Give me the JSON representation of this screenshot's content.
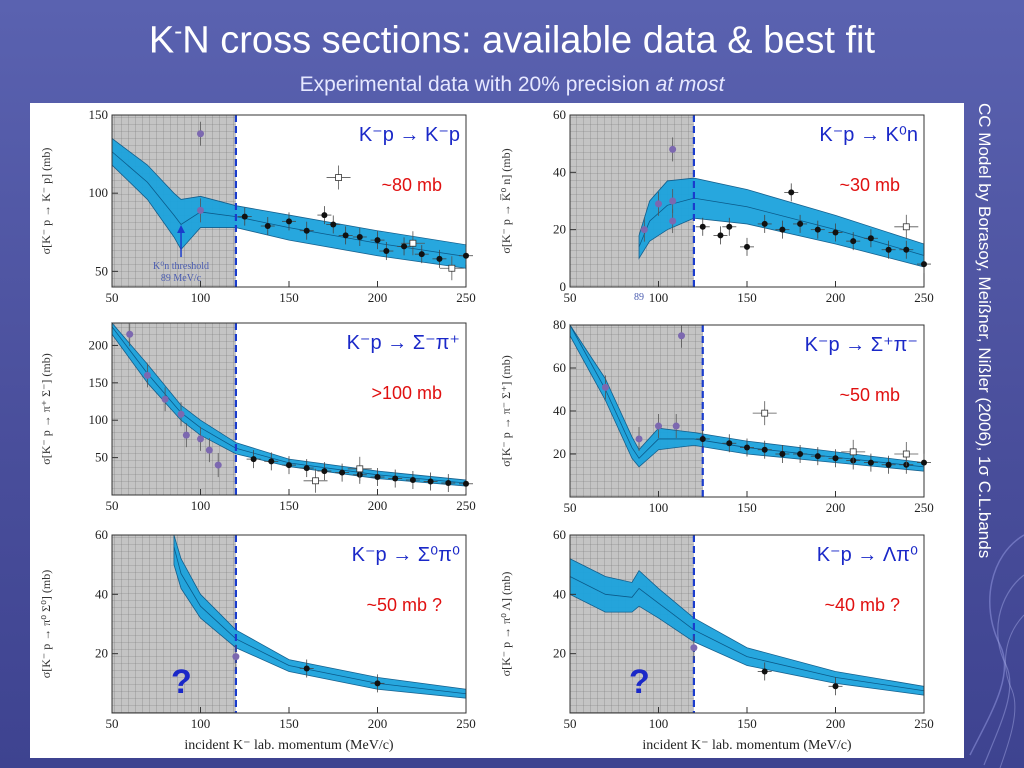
{
  "title_main": "K",
  "title_sup": "-",
  "title_rest": "N cross sections: available data & best fit",
  "subtitle_main": "Experimental data with 20% precision ",
  "subtitle_em": "at most",
  "side_credit": "CC Model by Borasoy, Meißner, Nißler (2006), 1σ C.L.bands",
  "xlabel_text": "incident K⁻ lab. momentum (MeV/c)",
  "colors": {
    "band": "#1ca3dd",
    "band_edge": "#0b5a8a",
    "shade": "#c4c4c4",
    "cutline": "#1a3ccc",
    "reaction": "#1a28c8",
    "estimate": "#e01010",
    "marker_black": "#111111",
    "marker_purple": "#7c68b0"
  },
  "chart_data": [
    {
      "type": "scatter",
      "reaction": "K⁻p → K⁻p",
      "estimate": "~80 mb",
      "ylabel": "σ[K⁻ p → K⁻ p] (mb)",
      "xlim": [
        50,
        250
      ],
      "ylim": [
        40,
        150
      ],
      "xticks": [
        50,
        100,
        150,
        200,
        250
      ],
      "yticks": [
        50,
        100,
        150
      ],
      "shade_upto": 120,
      "threshold_note": [
        "K⁰n threshold",
        "89 MeV/c"
      ],
      "threshold_x": 89,
      "band_upper": [
        [
          50,
          135
        ],
        [
          70,
          118
        ],
        [
          85,
          100
        ],
        [
          89,
          96
        ],
        [
          100,
          98
        ],
        [
          120,
          92
        ],
        [
          150,
          86
        ],
        [
          200,
          76
        ],
        [
          250,
          67
        ]
      ],
      "band_lower": [
        [
          50,
          118
        ],
        [
          70,
          96
        ],
        [
          85,
          72
        ],
        [
          89,
          64
        ],
        [
          100,
          78
        ],
        [
          120,
          78
        ],
        [
          150,
          70
        ],
        [
          200,
          60
        ],
        [
          250,
          52
        ]
      ],
      "points": [
        [
          125,
          85
        ],
        [
          138,
          79
        ],
        [
          150,
          82
        ],
        [
          160,
          76
        ],
        [
          170,
          86
        ],
        [
          175,
          80
        ],
        [
          182,
          73
        ],
        [
          190,
          72
        ],
        [
          200,
          70
        ],
        [
          205,
          63
        ],
        [
          215,
          66
        ],
        [
          225,
          61
        ],
        [
          235,
          58
        ],
        [
          250,
          60
        ]
      ],
      "open_points": [
        [
          178,
          110
        ],
        [
          220,
          68
        ],
        [
          242,
          52
        ]
      ],
      "purple_points": [
        [
          100,
          89
        ],
        [
          100,
          138
        ]
      ]
    },
    {
      "type": "scatter",
      "reaction": "K⁻p → K⁰n",
      "estimate": "~30 mb",
      "ylabel": "σ[K⁻ p → K̅⁰ n] (mb)",
      "xlim": [
        50,
        250
      ],
      "ylim": [
        0,
        60
      ],
      "xticks": [
        50,
        100,
        150,
        200,
        250
      ],
      "yticks": [
        0,
        20,
        40,
        60
      ],
      "shade_upto": 120,
      "threshold_label": "89",
      "threshold_x": 89,
      "band_upper": [
        [
          89,
          18
        ],
        [
          95,
          30
        ],
        [
          105,
          37
        ],
        [
          120,
          38
        ],
        [
          150,
          34
        ],
        [
          200,
          25
        ],
        [
          250,
          15
        ]
      ],
      "band_lower": [
        [
          89,
          10
        ],
        [
          95,
          16
        ],
        [
          105,
          20
        ],
        [
          120,
          24
        ],
        [
          150,
          22
        ],
        [
          200,
          15
        ],
        [
          250,
          7
        ]
      ],
      "points": [
        [
          125,
          21
        ],
        [
          135,
          18
        ],
        [
          140,
          21
        ],
        [
          150,
          14
        ],
        [
          160,
          22
        ],
        [
          170,
          20
        ],
        [
          175,
          33
        ],
        [
          180,
          22
        ],
        [
          190,
          20
        ],
        [
          200,
          19
        ],
        [
          210,
          16
        ],
        [
          220,
          17
        ],
        [
          230,
          13
        ],
        [
          240,
          13
        ],
        [
          250,
          8
        ]
      ],
      "open_points": [
        [
          240,
          21
        ]
      ],
      "purple_points": [
        [
          108,
          48
        ],
        [
          108,
          30
        ],
        [
          100,
          29
        ],
        [
          108,
          23
        ],
        [
          92,
          20
        ]
      ]
    },
    {
      "type": "scatter",
      "reaction": "K⁻p → Σ⁻π⁺",
      "estimate": ">100 mb",
      "ylabel": "σ[K⁻ p → π⁺ Σ⁻] (mb)",
      "xlim": [
        50,
        250
      ],
      "ylim": [
        0,
        230
      ],
      "xticks": [
        50,
        100,
        150,
        200,
        250
      ],
      "yticks": [
        50,
        100,
        150,
        200
      ],
      "shade_upto": 120,
      "band_upper": [
        [
          50,
          235
        ],
        [
          70,
          175
        ],
        [
          89,
          120
        ],
        [
          100,
          100
        ],
        [
          120,
          70
        ],
        [
          150,
          48
        ],
        [
          200,
          32
        ],
        [
          250,
          20
        ]
      ],
      "band_lower": [
        [
          50,
          215
        ],
        [
          70,
          150
        ],
        [
          89,
          100
        ],
        [
          100,
          80
        ],
        [
          120,
          55
        ],
        [
          150,
          38
        ],
        [
          200,
          22
        ],
        [
          250,
          12
        ]
      ],
      "points": [
        [
          130,
          48
        ],
        [
          140,
          45
        ],
        [
          150,
          40
        ],
        [
          160,
          36
        ],
        [
          170,
          32
        ],
        [
          180,
          30
        ],
        [
          190,
          27
        ],
        [
          200,
          24
        ],
        [
          210,
          22
        ],
        [
          220,
          20
        ],
        [
          230,
          18
        ],
        [
          240,
          16
        ],
        [
          250,
          15
        ]
      ],
      "open_points": [
        [
          190,
          35
        ],
        [
          165,
          19
        ]
      ],
      "purple_points": [
        [
          60,
          215
        ],
        [
          70,
          160
        ],
        [
          80,
          128
        ],
        [
          89,
          108
        ],
        [
          92,
          80
        ],
        [
          100,
          75
        ],
        [
          105,
          60
        ],
        [
          110,
          40
        ]
      ]
    },
    {
      "type": "scatter",
      "reaction": "K⁻p → Σ⁺π⁻",
      "estimate": "~50 mb",
      "ylabel": "σ[K⁻ p → π⁻ Σ⁺] (mb)",
      "xlim": [
        50,
        250
      ],
      "ylim": [
        0,
        80
      ],
      "xticks": [
        50,
        100,
        150,
        200,
        250
      ],
      "yticks": [
        20,
        40,
        60,
        80
      ],
      "shade_upto": 125,
      "band_upper": [
        [
          50,
          85
        ],
        [
          70,
          55
        ],
        [
          85,
          28
        ],
        [
          89,
          22
        ],
        [
          100,
          32
        ],
        [
          120,
          30
        ],
        [
          150,
          26
        ],
        [
          200,
          21
        ],
        [
          250,
          16
        ]
      ],
      "band_lower": [
        [
          50,
          75
        ],
        [
          70,
          45
        ],
        [
          85,
          18
        ],
        [
          89,
          14
        ],
        [
          100,
          22
        ],
        [
          120,
          24
        ],
        [
          150,
          20
        ],
        [
          200,
          16
        ],
        [
          250,
          12
        ]
      ],
      "points": [
        [
          125,
          27
        ],
        [
          140,
          25
        ],
        [
          150,
          23
        ],
        [
          160,
          22
        ],
        [
          170,
          20
        ],
        [
          180,
          20
        ],
        [
          190,
          19
        ],
        [
          200,
          18
        ],
        [
          210,
          17
        ],
        [
          220,
          16
        ],
        [
          230,
          15
        ],
        [
          240,
          15
        ],
        [
          250,
          16
        ]
      ],
      "open_points": [
        [
          160,
          39
        ],
        [
          210,
          21
        ],
        [
          240,
          20
        ]
      ],
      "purple_points": [
        [
          70,
          51
        ],
        [
          89,
          27
        ],
        [
          100,
          33
        ],
        [
          113,
          75
        ],
        [
          110,
          33
        ]
      ]
    },
    {
      "type": "line",
      "reaction": "K⁻p → Σ⁰π⁰",
      "estimate": "~50 mb ?",
      "ylabel": "σ[K⁻ p → π⁰ Σ⁰] (mb)",
      "xlim": [
        50,
        250
      ],
      "ylim": [
        0,
        60
      ],
      "xticks": [
        50,
        100,
        150,
        200,
        250
      ],
      "yticks": [
        20,
        40,
        60
      ],
      "shade_upto": 120,
      "question_mark": "?",
      "band_upper": [
        [
          85,
          62
        ],
        [
          89,
          52
        ],
        [
          100,
          40
        ],
        [
          120,
          28
        ],
        [
          150,
          18
        ],
        [
          200,
          12
        ],
        [
          250,
          8
        ]
      ],
      "band_lower": [
        [
          85,
          50
        ],
        [
          89,
          42
        ],
        [
          100,
          32
        ],
        [
          120,
          22
        ],
        [
          150,
          14
        ],
        [
          200,
          8
        ],
        [
          250,
          5
        ]
      ],
      "points": [
        [
          160,
          15
        ],
        [
          200,
          10
        ]
      ],
      "open_points": [],
      "purple_points": [
        [
          120,
          19
        ]
      ]
    },
    {
      "type": "line",
      "reaction": "K⁻p → Λπ⁰",
      "estimate": "~40 mb ?",
      "ylabel": "σ[K⁻ p → π⁰ Λ] (mb)",
      "xlim": [
        50,
        250
      ],
      "ylim": [
        0,
        60
      ],
      "xticks": [
        50,
        100,
        150,
        200,
        250
      ],
      "yticks": [
        20,
        40,
        60
      ],
      "shade_upto": 120,
      "question_mark": "?",
      "band_upper": [
        [
          50,
          52
        ],
        [
          70,
          46
        ],
        [
          85,
          44
        ],
        [
          89,
          48
        ],
        [
          100,
          42
        ],
        [
          120,
          32
        ],
        [
          150,
          22
        ],
        [
          200,
          14
        ],
        [
          250,
          9
        ]
      ],
      "band_lower": [
        [
          50,
          40
        ],
        [
          70,
          34
        ],
        [
          85,
          34
        ],
        [
          89,
          36
        ],
        [
          100,
          32
        ],
        [
          120,
          24
        ],
        [
          150,
          16
        ],
        [
          200,
          10
        ],
        [
          250,
          6
        ]
      ],
      "points": [
        [
          160,
          14
        ],
        [
          200,
          9
        ]
      ],
      "open_points": [],
      "purple_points": [
        [
          120,
          22
        ]
      ]
    }
  ]
}
